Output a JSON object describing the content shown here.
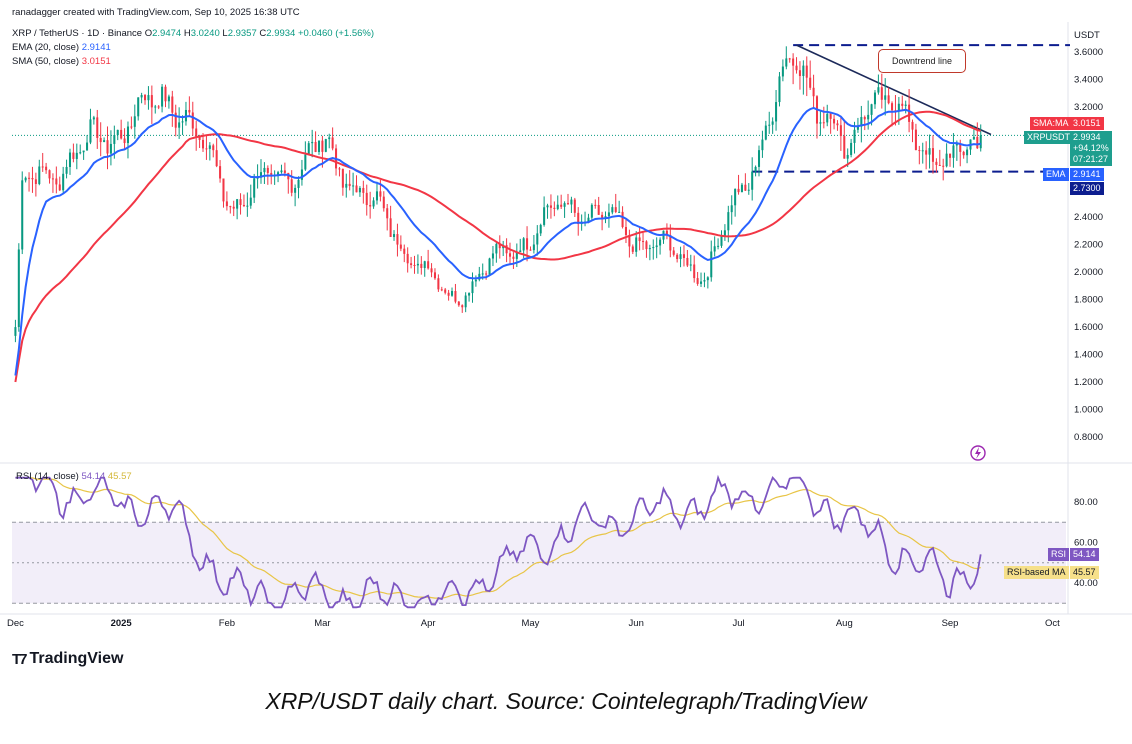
{
  "header": {
    "created": "ranadagger created with TradingView.com, Sep 10, 2025 16:38 UTC",
    "symbol": "XRP / TetherUS · 1D · Binance",
    "o_label": "O",
    "o": "2.9474",
    "h_label": "H",
    "h": "3.0240",
    "l_label": "L",
    "l": "2.9357",
    "c_label": "C",
    "c": "2.9934",
    "change": "+0.0460 (+1.56%)",
    "ema_label": "EMA (20, close)",
    "ema_value": "2.9141",
    "sma_label": "SMA (50, close)",
    "sma_value": "3.0151"
  },
  "price_axis": {
    "currency": "USDT",
    "ticks": [
      "3.6000",
      "3.4000",
      "3.2000",
      "2.4000",
      "2.2000",
      "2.0000",
      "1.8000",
      "1.6000",
      "1.4000",
      "1.2000",
      "1.0000",
      "0.8000"
    ]
  },
  "badges": {
    "sma_ma": "SMA:MA",
    "sma_val": "3.0151",
    "xrpusdt": "XRPUSDT",
    "price": "2.9934",
    "pct": "+94.12%",
    "countdown": "07:21:27",
    "ema": "EMA",
    "ema_val": "2.9141",
    "support_val": "2.7300",
    "rsi": "RSI",
    "rsi_val": "54.14",
    "rsi_ma": "RSI-based MA",
    "rsi_ma_val": "45.57"
  },
  "annotation": {
    "downtrend": "Downtrend line"
  },
  "rsi_header": {
    "label": "RSI (14, close)",
    "rsi": "54.14",
    "ma": "45.57"
  },
  "rsi_axis": {
    "ticks": [
      "80.00",
      "60.00",
      "40.00"
    ]
  },
  "time_axis": {
    "labels": [
      "Dec",
      "2025",
      "Feb",
      "Mar",
      "Apr",
      "May",
      "Jun",
      "Jul",
      "Aug",
      "Sep",
      "Oct"
    ]
  },
  "brand": {
    "name": "TradingView"
  },
  "caption": "XRP/USDT daily chart. Source: Cointelegraph/TradingView",
  "colors": {
    "up": "#089981",
    "down": "#f23645",
    "ema": "#2962ff",
    "sma": "#f23645",
    "rsi": "#7e57c2",
    "rsi_ma": "#e8c547",
    "navy": "#0c1d8f"
  },
  "chart_data": {
    "type": "candlestick",
    "symbol": "XRP / TetherUS",
    "timeframe": "1D",
    "ylim": [
      0.7,
      3.75
    ],
    "key_points": [
      {
        "date": "2024-12-01",
        "close": 1.6
      },
      {
        "date": "2024-12-03",
        "close": 2.6
      },
      {
        "date": "2025-01-16",
        "close": 3.3
      },
      {
        "date": "2025-02-03",
        "close": 2.5
      },
      {
        "date": "2025-03-02",
        "close": 2.9
      },
      {
        "date": "2025-04-07",
        "close": 1.8
      },
      {
        "date": "2025-05-12",
        "close": 2.5
      },
      {
        "date": "2025-06-22",
        "close": 2.0
      },
      {
        "date": "2025-07-18",
        "close": 3.6
      },
      {
        "date": "2025-08-02",
        "close": 2.8
      },
      {
        "date": "2025-08-08",
        "close": 3.35
      },
      {
        "date": "2025-09-01",
        "close": 2.75
      },
      {
        "date": "2025-09-10",
        "close": 2.9934
      }
    ],
    "lines": {
      "resistance": 3.65,
      "support": 2.73,
      "last_price": 2.9934,
      "downtrend": [
        {
          "date": "2025-07-18",
          "price": 3.65
        },
        {
          "date": "2025-09-13",
          "price": 3.0
        }
      ]
    },
    "rsi": {
      "period": 14,
      "last": 54.14,
      "ma_last": 45.57,
      "band": [
        30,
        70
      ],
      "key_points": [
        {
          "date": "2024-12-01",
          "rsi": 90
        },
        {
          "date": "2025-01-16",
          "rsi": 75
        },
        {
          "date": "2025-02-03",
          "rsi": 35
        },
        {
          "date": "2025-04-07",
          "rsi": 32
        },
        {
          "date": "2025-05-12",
          "rsi": 67
        },
        {
          "date": "2025-07-18",
          "rsi": 88
        },
        {
          "date": "2025-09-01",
          "rsi": 40
        },
        {
          "date": "2025-09-10",
          "rsi": 54.14
        }
      ]
    }
  }
}
